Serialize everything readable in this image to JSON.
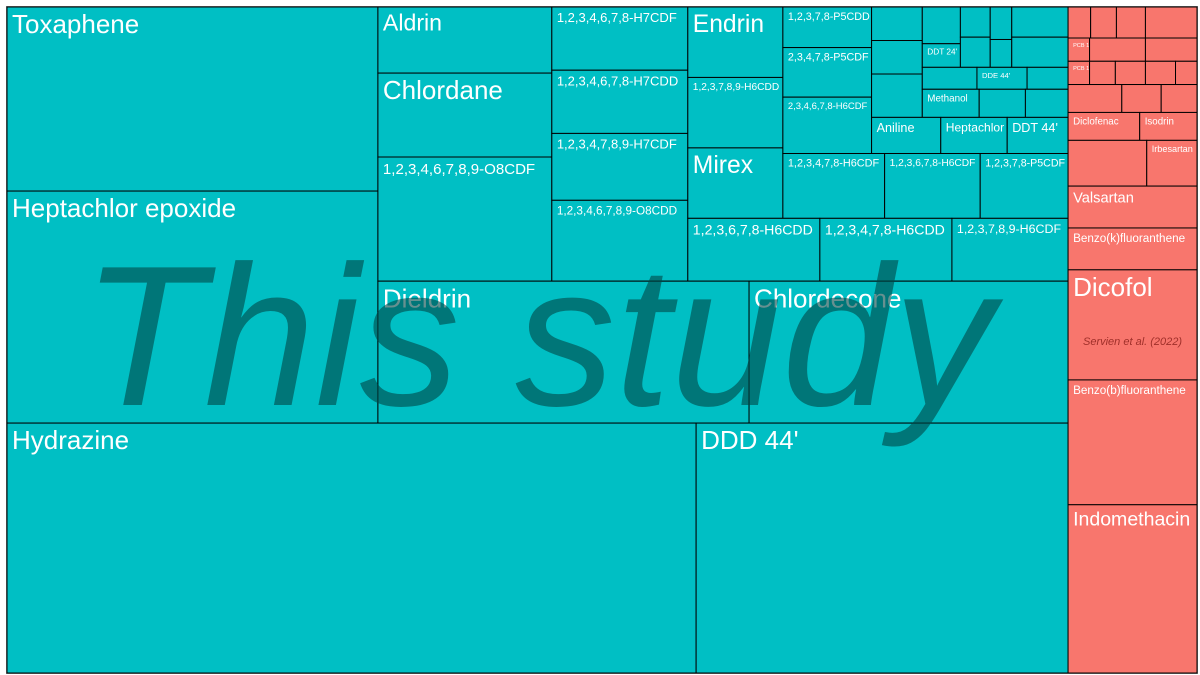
{
  "chart_data": {
    "type": "treemap",
    "children": [
      {
        "name": "This study",
        "color": "#00bfc4",
        "children": [
          {
            "children": [
              {
                "children": [
                  {
                    "label": "Toxaphene",
                    "value": 683
                  },
                  {
                    "label": "Heptachlor epoxide",
                    "value": 861
                  }
                ]
              },
              {
                "children": [
                  {
                    "children": [
                      {
                        "children": [
                          {
                            "label": "Aldrin",
                            "value": 115
                          },
                          {
                            "label": "Chlordane",
                            "value": 146
                          },
                          {
                            "label": "1,2,3,4,6,7,8,9-O8CDF",
                            "value": 216
                          }
                        ]
                      },
                      {
                        "children": [
                          {
                            "label": "1,2,3,4,6,7,8-H7CDF",
                            "value": 86
                          },
                          {
                            "label": "1,2,3,4,6,7,8-H7CDD",
                            "value": 86
                          },
                          {
                            "label": "1,2,3,4,7,8,9-H7CDF",
                            "value": 91
                          },
                          {
                            "label": "1,2,3,4,6,7,8,9-O8CDD",
                            "value": 110
                          }
                        ]
                      },
                      {
                        "children": [
                          {
                            "children": [
                              {
                                "children": [
                                  {
                                    "label": "Endrin",
                                    "value": 67
                                  },
                                  {
                                    "label": "1,2,3,7,8,9-H6CDD",
                                    "value": 67
                                  },
                                  {
                                    "label": "Mirex",
                                    "value": 67
                                  }
                                ]
                              },
                              {
                                "children": [
                                  {
                                    "children": [
                                      {
                                        "children": [
                                          {
                                            "label": "1,2,3,7,8-P5CDD",
                                            "value": 36
                                          },
                                          {
                                            "label": "2,3,4,7,8-P5CDF",
                                            "value": 44
                                          },
                                          {
                                            "label": "2,3,4,6,7,8-H6CDF",
                                            "value": 50
                                          }
                                        ]
                                      },
                                      {
                                        "children": [
                                          {
                                            "children": [
                                              {
                                                "children": [
                                                  {
                                                    "label": null,
                                                    "value": 17
                                                  },
                                                  {
                                                    "label": null,
                                                    "value": 17
                                                  },
                                                  {
                                                    "label": null,
                                                    "value": 22
                                                  }
                                                ]
                                              },
                                              {
                                                "children": [
                                                  {
                                                    "children": [
                                                      {
                                                        "children": [
                                                          {
                                                            "label": null,
                                                            "value": 14
                                                          },
                                                          {
                                                            "label": "DDT 24'",
                                                            "value": 9
                                                          }
                                                        ]
                                                      },
                                                      {
                                                        "children": [
                                                          {
                                                            "label": null,
                                                            "value": 9
                                                          },
                                                          {
                                                            "label": null,
                                                            "value": 9
                                                          }
                                                        ]
                                                      },
                                                      {
                                                        "children": [
                                                          {
                                                            "label": null,
                                                            "value": 7
                                                          },
                                                          {
                                                            "label": null,
                                                            "value": 6
                                                          }
                                                        ]
                                                      },
                                                      {
                                                        "children": [
                                                          {
                                                            "label": null,
                                                            "value": 17
                                                          },
                                                          {
                                                            "label": null,
                                                            "value": 17
                                                          }
                                                        ]
                                                      }
                                                    ]
                                                  },
                                                  {
                                                    "children": [
                                                      {
                                                        "label": null,
                                                        "value": 12
                                                      },
                                                      {
                                                        "label": "DDE 44'",
                                                        "value": 11
                                                      },
                                                      {
                                                        "label": null,
                                                        "value": 9
                                                      }
                                                    ]
                                                  },
                                                  {
                                                    "children": [
                                                      {
                                                        "label": "Methanol",
                                                        "value": 16
                                                      },
                                                      {
                                                        "label": null,
                                                        "value": 13
                                                      },
                                                      {
                                                        "label": null,
                                                        "value": 12
                                                      }
                                                    ]
                                                  }
                                                ]
                                              }
                                            ]
                                          },
                                          {
                                            "children": [
                                              {
                                                "label": "Aniline",
                                                "value": 25
                                              },
                                              {
                                                "label": "Heptachlor",
                                                "value": 24
                                              },
                                              {
                                                "label": "DDT 44'",
                                                "value": 22
                                              }
                                            ]
                                          }
                                        ]
                                      }
                                    ]
                                  },
                                  {
                                    "children": [
                                      {
                                        "label": "1,2,3,4,7,8-H6CDF",
                                        "value": 66
                                      },
                                      {
                                        "label": "1,2,3,6,7,8-H6CDF",
                                        "value": 62
                                      },
                                      {
                                        "label": "1,2,3,7,8-P5CDF",
                                        "value": 57
                                      }
                                    ]
                                  }
                                ]
                              }
                            ]
                          },
                          {
                            "children": [
                              {
                                "label": "1,2,3,6,7,8-H6CDD",
                                "value": 83
                              },
                              {
                                "label": "1,2,3,4,7,8-H6CDD",
                                "value": 83
                              },
                              {
                                "label": "1,2,3,7,8,9-H6CDF",
                                "value": 73
                              }
                            ]
                          }
                        ]
                      }
                    ]
                  },
                  {
                    "children": [
                      {
                        "label": "Dieldrin",
                        "value": 527
                      },
                      {
                        "label": "Chlordecone",
                        "value": 453
                      }
                    ]
                  }
                ]
              }
            ]
          },
          {
            "children": [
              {
                "label": "Hydrazine",
                "value": 1723
              },
              {
                "label": "DDD 44'",
                "value": 930
              }
            ]
          }
        ]
      },
      {
        "name": "Servien et al. (2022)",
        "color": "#f8766d",
        "children": [
          {
            "children": [
              {
                "label": null,
                "value": 7
              },
              {
                "label": null,
                "value": 8
              },
              {
                "label": null,
                "value": 9
              },
              {
                "label": null,
                "value": 16
              }
            ]
          },
          {
            "children": [
              {
                "label": "PCB 153",
                "value": 5
              },
              {
                "label": null,
                "value": 13
              },
              {
                "label": null,
                "value": 12
              }
            ]
          },
          {
            "children": [
              {
                "label": "PCB 180",
                "value": 5
              },
              {
                "label": null,
                "value": 6
              },
              {
                "label": null,
                "value": 7
              },
              {
                "label": null,
                "value": 7
              },
              {
                "label": null,
                "value": 5
              }
            ]
          },
          {
            "children": [
              {
                "label": null,
                "value": 15
              },
              {
                "label": null,
                "value": 11
              },
              {
                "label": null,
                "value": 10
              }
            ]
          },
          {
            "children": [
              {
                "label": "Diclofenac",
                "value": 20
              },
              {
                "label": "Isodrin",
                "value": 16
              }
            ]
          },
          {
            "children": [
              {
                "label": null,
                "value": 36
              },
              {
                "label": "Irbesartan",
                "value": 23
              }
            ]
          },
          {
            "label": "Valsartan",
            "value": 54
          },
          {
            "label": "Benzo(k)fluoranthene",
            "value": 54
          },
          {
            "label": "Dicofol",
            "value": 142
          },
          {
            "label": "Benzo(b)fluoranthene",
            "value": 161
          },
          {
            "label": "Indomethacin",
            "value": 217
          }
        ]
      }
    ]
  }
}
